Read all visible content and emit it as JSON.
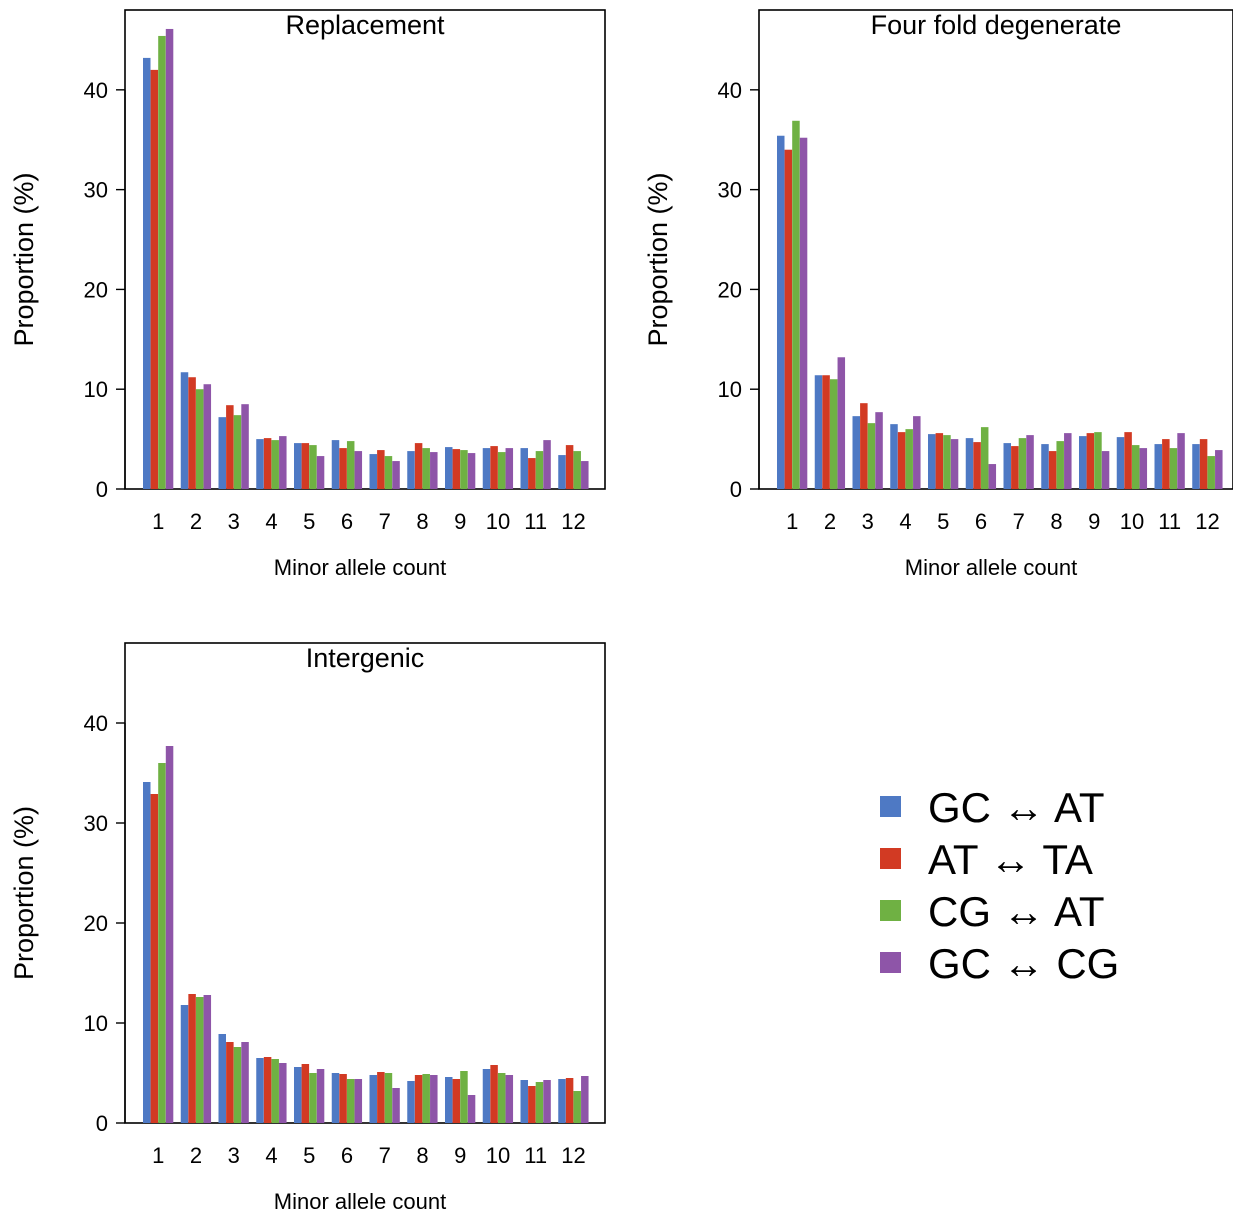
{
  "colors": {
    "series": [
      "#4e79c4",
      "#d23a23",
      "#6fb143",
      "#8e55a8"
    ]
  },
  "legend": {
    "items": [
      "GC ↔ AT",
      "AT ↔ TA",
      "CG ↔ AT",
      "GC ↔ CG"
    ]
  },
  "chart_data": [
    {
      "type": "bar",
      "title": "Replacement",
      "xlabel": "Minor allele count",
      "ylabel": "Proportion (%)",
      "ylim": [
        0,
        48
      ],
      "yticks": [
        0,
        10,
        20,
        30,
        40
      ],
      "categories": [
        "1",
        "2",
        "3",
        "4",
        "5",
        "6",
        "7",
        "8",
        "9",
        "10",
        "11",
        "12"
      ],
      "series": [
        {
          "values": [
            43.2,
            11.7,
            7.2,
            5.0,
            4.6,
            4.9,
            3.5,
            3.8,
            4.2,
            4.1,
            4.1,
            3.4
          ]
        },
        {
          "values": [
            42.0,
            11.2,
            8.4,
            5.1,
            4.6,
            4.1,
            3.9,
            4.6,
            4.0,
            4.3,
            3.1,
            4.4
          ]
        },
        {
          "values": [
            45.4,
            10.0,
            7.4,
            4.9,
            4.4,
            4.8,
            3.3,
            4.1,
            3.9,
            3.7,
            3.8,
            3.8
          ]
        },
        {
          "values": [
            46.1,
            10.5,
            8.5,
            5.3,
            3.3,
            3.8,
            2.8,
            3.7,
            3.6,
            4.1,
            4.9,
            2.8
          ]
        }
      ]
    },
    {
      "type": "bar",
      "title": "Four fold degenerate",
      "xlabel": "Minor allele count",
      "ylabel": "Proportion (%)",
      "ylim": [
        0,
        48
      ],
      "yticks": [
        0,
        10,
        20,
        30,
        40
      ],
      "categories": [
        "1",
        "2",
        "3",
        "4",
        "5",
        "6",
        "7",
        "8",
        "9",
        "10",
        "11",
        "12"
      ],
      "series": [
        {
          "values": [
            35.4,
            11.4,
            7.3,
            6.5,
            5.5,
            5.1,
            4.6,
            4.5,
            5.3,
            5.2,
            4.5,
            4.5
          ]
        },
        {
          "values": [
            34.0,
            11.4,
            8.6,
            5.7,
            5.6,
            4.7,
            4.3,
            3.8,
            5.6,
            5.7,
            5.0,
            5.0
          ]
        },
        {
          "values": [
            36.9,
            11.0,
            6.6,
            6.0,
            5.4,
            6.2,
            5.1,
            4.8,
            5.7,
            4.4,
            4.1,
            3.3
          ]
        },
        {
          "values": [
            35.2,
            13.2,
            7.7,
            7.3,
            5.0,
            2.5,
            5.4,
            5.6,
            3.8,
            4.1,
            5.6,
            3.9
          ]
        }
      ]
    },
    {
      "type": "bar",
      "title": "Intergenic",
      "xlabel": "Minor allele count",
      "ylabel": "Proportion (%)",
      "ylim": [
        0,
        48
      ],
      "yticks": [
        0,
        10,
        20,
        30,
        40
      ],
      "categories": [
        "1",
        "2",
        "3",
        "4",
        "5",
        "6",
        "7",
        "8",
        "9",
        "10",
        "11",
        "12"
      ],
      "series": [
        {
          "values": [
            34.1,
            11.8,
            8.9,
            6.5,
            5.6,
            5.0,
            4.8,
            4.2,
            4.6,
            5.4,
            4.3,
            4.4
          ]
        },
        {
          "values": [
            32.9,
            12.9,
            8.1,
            6.6,
            5.9,
            4.9,
            5.1,
            4.8,
            4.4,
            5.8,
            3.7,
            4.5
          ]
        },
        {
          "values": [
            36.0,
            12.6,
            7.6,
            6.4,
            5.0,
            4.4,
            5.0,
            4.9,
            5.2,
            5.0,
            4.1,
            3.2
          ]
        },
        {
          "values": [
            37.7,
            12.8,
            8.1,
            6.0,
            5.4,
            4.4,
            3.5,
            4.8,
            2.8,
            4.8,
            4.3,
            4.7
          ]
        }
      ]
    }
  ]
}
